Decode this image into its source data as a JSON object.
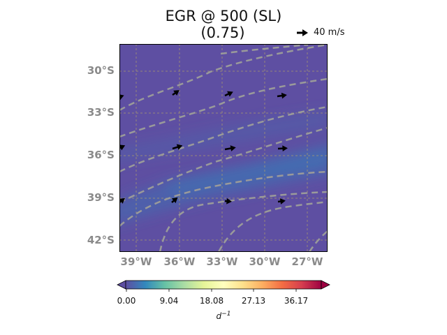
{
  "title": {
    "line1": "EGR @ 500 (SL)",
    "line2": "(0.75)"
  },
  "vector_key": {
    "label": "40 m/s"
  },
  "map": {
    "lat_labels": [
      "30°S",
      "33°S",
      "36°S",
      "39°S",
      "42°S"
    ],
    "lon_labels": [
      "39°W",
      "36°W",
      "33°W",
      "30°W",
      "27°W"
    ],
    "background_color": "#5e4fa2",
    "contour_color": "#9a9a9a",
    "grid_color": "#b0a06a"
  },
  "colorbar": {
    "tick_labels": [
      "0.00",
      "9.04",
      "18.08",
      "27.13",
      "36.17"
    ],
    "unit_base": "d",
    "unit_exp": "−1",
    "colormap": "Spectral_r",
    "colors": [
      "#5e4fa2",
      "#3288bd",
      "#66c2a5",
      "#abdda4",
      "#e6f598",
      "#ffffbf",
      "#fee08b",
      "#fdae61",
      "#f46d43",
      "#d53e4f",
      "#9e0142"
    ]
  }
}
